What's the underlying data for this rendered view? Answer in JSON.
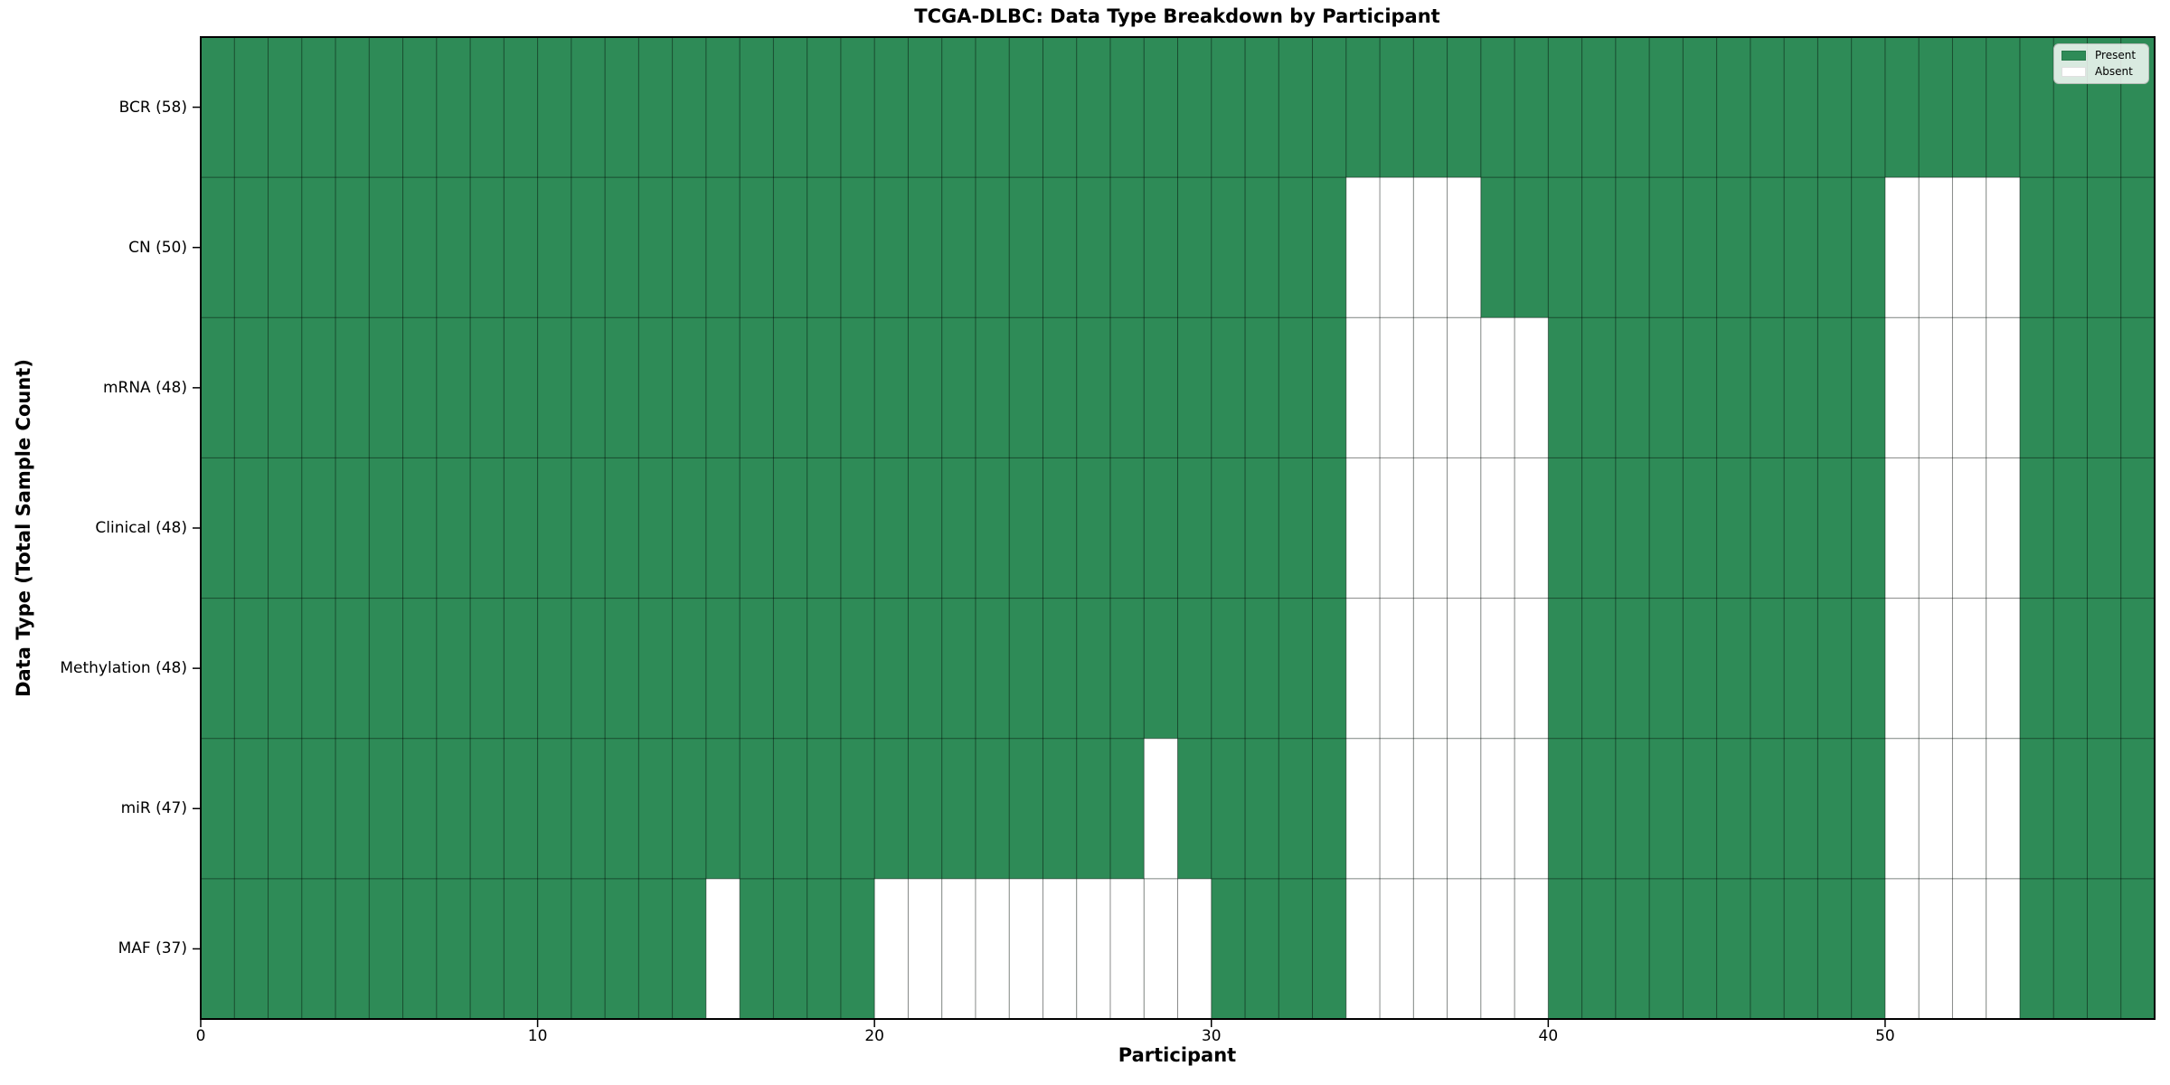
{
  "figure": {
    "title": "TCGA-DLBC: Data Type Breakdown by Participant",
    "xlabel": "Participant",
    "ylabel": "Data Type (Total Sample Count)"
  },
  "legend": {
    "items": [
      {
        "label": "Present",
        "color": "#2e8b57"
      },
      {
        "label": "Absent",
        "color": "#ffffff"
      }
    ],
    "position": "upper right"
  },
  "colors": {
    "present": "#2e8b57",
    "absent": "#ffffff",
    "grid": "rgba(0,0,0,0.45)",
    "spine": "#000000",
    "background": "#ffffff"
  },
  "chart_data": {
    "type": "heatmap",
    "title": "TCGA-DLBC: Data Type Breakdown by Participant",
    "xlabel": "Participant",
    "ylabel": "Data Type (Total Sample Count)",
    "x_range": [
      0,
      58
    ],
    "n_participants": 58,
    "x_ticks": [
      0,
      10,
      20,
      30,
      40,
      50
    ],
    "x_tick_labels": [
      "0",
      "10",
      "20",
      "30",
      "40",
      "50"
    ],
    "grid": true,
    "legend_entries": [
      "Present",
      "Absent"
    ],
    "legend_position": "upper right",
    "cell_values": {
      "present": 1,
      "absent": 0
    },
    "rows": [
      {
        "label": "BCR (58)",
        "name": "BCR",
        "total_samples": 58,
        "absent_participants": []
      },
      {
        "label": "CN (50)",
        "name": "CN",
        "total_samples": 50,
        "absent_participants": [
          34,
          35,
          36,
          37,
          50,
          51,
          52,
          53
        ]
      },
      {
        "label": "mRNA (48)",
        "name": "mRNA",
        "total_samples": 48,
        "absent_participants": [
          34,
          35,
          36,
          37,
          38,
          39,
          50,
          51,
          52,
          53
        ]
      },
      {
        "label": "Clinical (48)",
        "name": "Clinical",
        "total_samples": 48,
        "absent_participants": [
          34,
          35,
          36,
          37,
          38,
          39,
          50,
          51,
          52,
          53
        ]
      },
      {
        "label": "Methylation (48)",
        "name": "Methylation",
        "total_samples": 48,
        "absent_participants": [
          34,
          35,
          36,
          37,
          38,
          39,
          50,
          51,
          52,
          53
        ]
      },
      {
        "label": "miR (47)",
        "name": "miR",
        "total_samples": 47,
        "absent_participants": [
          28,
          34,
          35,
          36,
          37,
          38,
          39,
          50,
          51,
          52,
          53
        ]
      },
      {
        "label": "MAF (37)",
        "name": "MAF",
        "total_samples": 37,
        "absent_participants": [
          15,
          20,
          21,
          22,
          23,
          24,
          25,
          26,
          27,
          28,
          29,
          34,
          35,
          36,
          37,
          38,
          39,
          50,
          51,
          52,
          53
        ]
      }
    ]
  }
}
